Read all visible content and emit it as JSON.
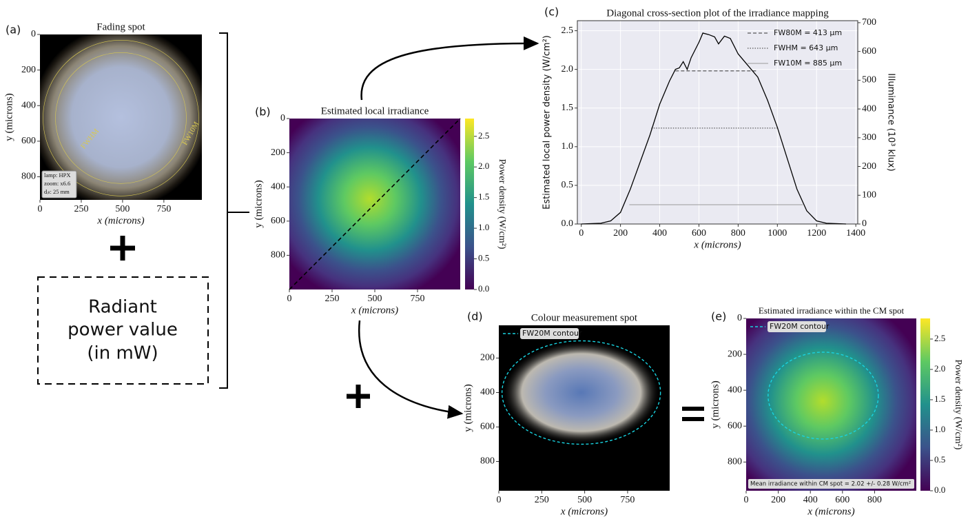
{
  "chart_data": [
    {
      "type": "image",
      "label": "(a)",
      "title": "Fading spot",
      "xlabel": "x (microns)",
      "ylabel": "y (microns)",
      "xlim": [
        0,
        980
      ],
      "ylim": [
        930,
        0
      ],
      "xticks": [
        0,
        250,
        500,
        750
      ],
      "yticks": [
        0,
        200,
        400,
        600,
        800
      ],
      "annotations": [
        "FWHM",
        "FW10M"
      ],
      "info": [
        "lamp: HPX",
        "zoom: x6.6",
        "dᵢₗₗ: 25 mm"
      ]
    },
    {
      "type": "heatmap",
      "label": "(b)",
      "title": "Estimated local irradiance",
      "xlabel": "x (microns)",
      "ylabel": "y (microns)",
      "xlim": [
        0,
        1000
      ],
      "ylim": [
        1000,
        0
      ],
      "xticks": [
        0,
        250,
        500,
        750
      ],
      "yticks": [
        0,
        200,
        400,
        600,
        800
      ],
      "clabel": "Power density (W/cm²)",
      "clim": [
        0,
        2.79
      ],
      "cticks": [
        {
          "value": 0,
          "label": "0.0"
        },
        0.5,
        {
          "value": 1,
          "label": "1.0"
        },
        1.5,
        {
          "value": 2,
          "label": "2.0"
        },
        2.5
      ]
    },
    {
      "type": "line",
      "label": "(c)",
      "title": "Diagonal cross-section plot of the irradiance mapping",
      "xlabel": "x (microns)",
      "ylabel": "Estimated local power density (W/cm²)",
      "y2label": "Illuminance (10³ klux)",
      "grid": true,
      "legend": "upper right",
      "xlim": [
        -20,
        1410
      ],
      "ylim": [
        0,
        2.63
      ],
      "y2lim": [
        0,
        707
      ],
      "xticks": [
        0,
        200,
        400,
        600,
        800,
        1000,
        1200,
        1400
      ],
      "yticks": [
        {
          "value": 0,
          "label": "0.0"
        },
        0.5,
        {
          "value": 1,
          "label": "1.0"
        },
        1.5,
        {
          "value": 2,
          "label": "2.0"
        },
        2.5
      ],
      "y2ticks": [
        0,
        100,
        200,
        300,
        400,
        500,
        600,
        700
      ],
      "color": "#000000",
      "x": [
        0,
        100,
        150,
        200,
        250,
        300,
        350,
        400,
        450,
        480,
        500,
        520,
        540,
        560,
        600,
        620,
        650,
        680,
        700,
        730,
        760,
        800,
        850,
        900,
        950,
        1000,
        1050,
        1100,
        1150,
        1200,
        1250,
        1350
      ],
      "values": [
        0,
        0.01,
        0.04,
        0.15,
        0.45,
        0.8,
        1.15,
        1.55,
        1.85,
        2.0,
        2.02,
        2.1,
        2.0,
        2.15,
        2.35,
        2.47,
        2.45,
        2.42,
        2.33,
        2.43,
        2.4,
        2.2,
        2.05,
        1.9,
        1.6,
        1.25,
        0.85,
        0.45,
        0.17,
        0.04,
        0.01,
        0
      ],
      "series": [
        {
          "name": "FW80M = 413 μm",
          "color": "#333333",
          "dash": "dashed",
          "x": [
            480,
            893
          ],
          "values": [
            1.98,
            1.98
          ]
        },
        {
          "name": "FWHM = 643 μm",
          "color": "#333333",
          "dash": "dotted",
          "x": [
            357,
            1000
          ],
          "values": [
            1.24,
            1.24
          ]
        },
        {
          "name": "FW10M = 885 μm",
          "color": "#999999",
          "dash": "solid",
          "x": [
            245,
            1130
          ],
          "values": [
            0.25,
            0.25
          ]
        }
      ]
    },
    {
      "type": "image",
      "label": "(d)",
      "title": "Colour measurement spot",
      "xlabel": "x (microns)",
      "ylabel": "y (microns)",
      "xlim": [
        0,
        995
      ],
      "ylim": [
        970,
        10
      ],
      "xticks": [
        0,
        250,
        500,
        750
      ],
      "yticks": [
        200,
        400,
        600,
        800
      ],
      "legend_label": "FW20M contour"
    },
    {
      "type": "heatmap",
      "label": "(e)",
      "title": "Estimated irradiance within the CM spot",
      "xlabel": "x (microns)",
      "ylabel": "y (microns)",
      "xlim": [
        0,
        1060
      ],
      "ylim": [
        960,
        0
      ],
      "xticks": [
        0,
        200,
        400,
        600,
        800
      ],
      "yticks": [
        0,
        200,
        400,
        600,
        800
      ],
      "clabel": "Power density (W/cm²)",
      "clim": [
        0,
        2.84
      ],
      "cticks": [
        {
          "value": 0,
          "label": "0.0"
        },
        0.5,
        {
          "value": 1,
          "label": "1.0"
        },
        1.5,
        {
          "value": 2,
          "label": "2.0"
        },
        2.5
      ],
      "legend_label": "FW20M contour",
      "note": "Mean irradiance within CM spot = 2.02 +/- 0.28 W/cm²"
    }
  ],
  "power_box": [
    "Radiant",
    "power value",
    "(in mW)"
  ]
}
